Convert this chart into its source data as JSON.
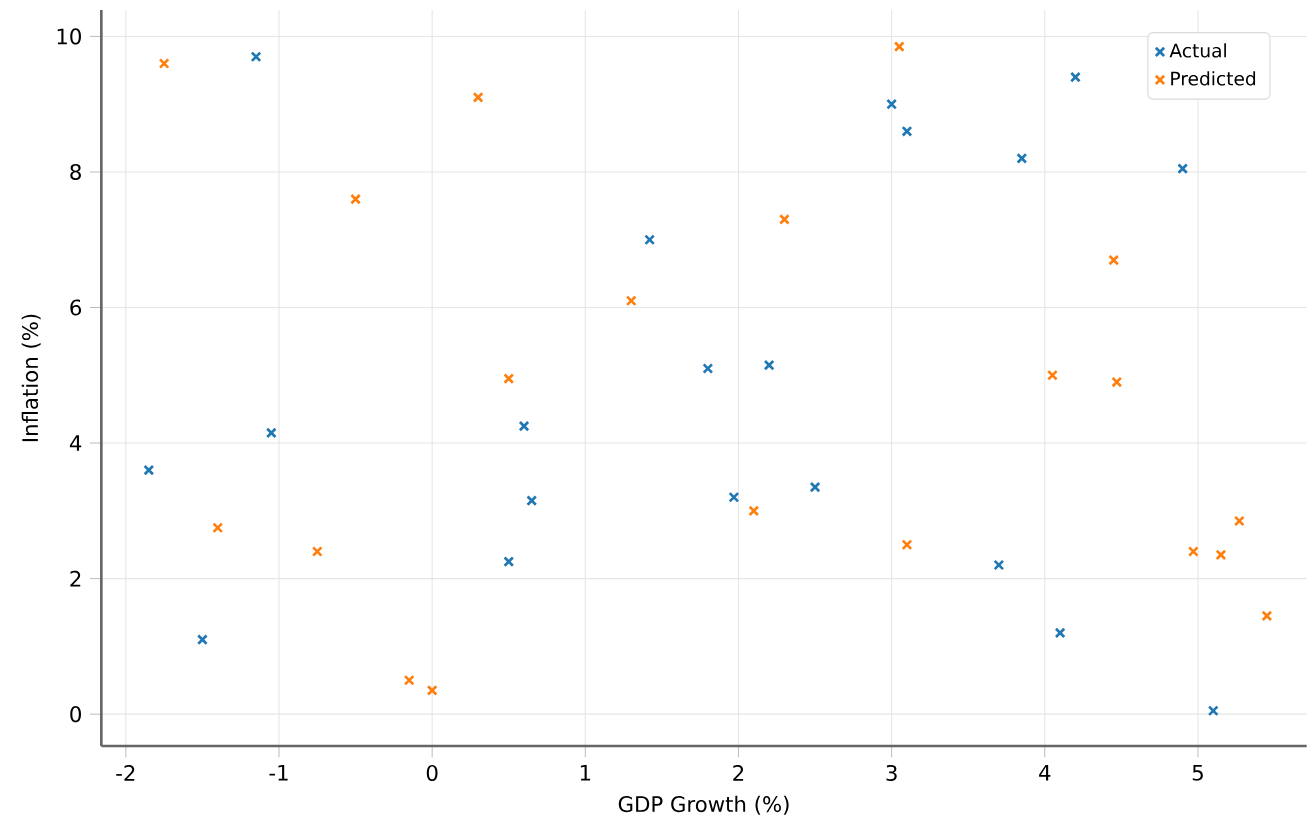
{
  "chart_data": {
    "type": "scatter",
    "xlabel": "GDP Growth (%)",
    "ylabel": "Inflation (%)",
    "xlim": [
      -2.16,
      5.71
    ],
    "ylim": [
      -0.47,
      10.39
    ],
    "xticks": [
      -2,
      -1,
      0,
      1,
      2,
      3,
      4,
      5
    ],
    "yticks": [
      0,
      2,
      4,
      6,
      8,
      10
    ],
    "grid": true,
    "legend": "top right",
    "marker": "cross",
    "series": [
      {
        "name": "Actual",
        "color": "#1f77b4",
        "x": [
          -1.85,
          -1.5,
          -1.15,
          -1.05,
          0.5,
          0.6,
          0.65,
          1.42,
          1.8,
          1.97,
          2.2,
          2.5,
          3.0,
          3.1,
          3.7,
          3.85,
          4.1,
          4.2,
          4.9,
          5.1
        ],
        "values": [
          3.6,
          1.1,
          9.7,
          4.15,
          2.25,
          4.25,
          3.15,
          7.0,
          5.1,
          3.2,
          5.15,
          3.35,
          9.0,
          8.6,
          2.2,
          8.2,
          1.2,
          9.4,
          8.05,
          0.05
        ]
      },
      {
        "name": "Predicted",
        "color": "#ff7f0e",
        "x": [
          -1.75,
          -1.4,
          -0.75,
          -0.5,
          -0.15,
          0.0,
          0.3,
          0.5,
          1.3,
          2.1,
          2.3,
          3.05,
          3.1,
          4.05,
          4.45,
          4.47,
          4.97,
          5.15,
          5.27,
          5.45
        ],
        "values": [
          9.6,
          2.75,
          2.4,
          7.6,
          0.5,
          0.35,
          9.1,
          4.95,
          6.1,
          3.0,
          7.3,
          9.85,
          2.5,
          5.0,
          6.7,
          4.9,
          2.4,
          2.35,
          2.85,
          1.45
        ]
      }
    ]
  }
}
